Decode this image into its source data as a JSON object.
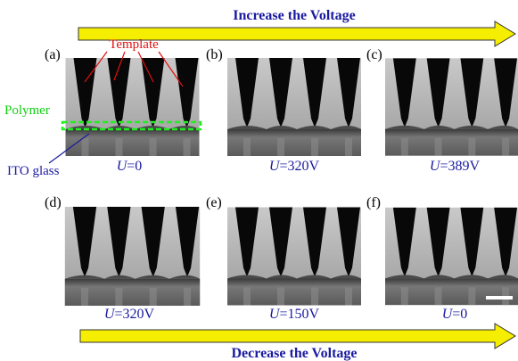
{
  "top_arrow": {
    "label": "Increase the Voltage"
  },
  "bottom_arrow": {
    "label": "Decrease the Voltage"
  },
  "annotations": {
    "template": "Template",
    "polymer": "Polymer",
    "ito": "ITO glass"
  },
  "panels": [
    {
      "tag": "(a)",
      "symbol": "U",
      "value": "=0"
    },
    {
      "tag": "(b)",
      "symbol": "U",
      "value": "=320V"
    },
    {
      "tag": "(c)",
      "symbol": "U",
      "value": "=389V"
    },
    {
      "tag": "(d)",
      "symbol": "U",
      "value": "=320V"
    },
    {
      "tag": "(e)",
      "symbol": "U",
      "value": "=150V"
    },
    {
      "tag": "(f)",
      "symbol": "U",
      "value": "=0"
    }
  ]
}
